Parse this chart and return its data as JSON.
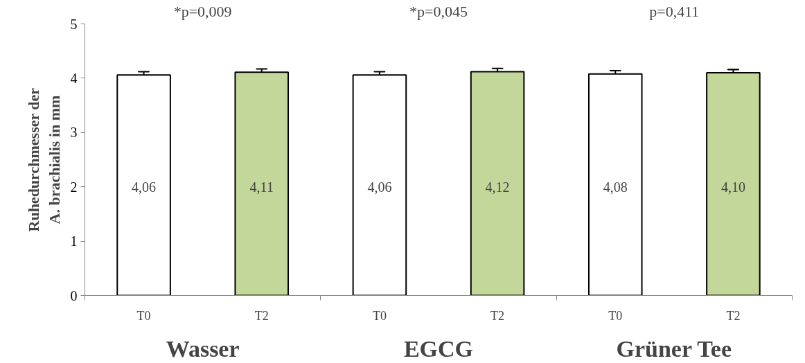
{
  "chart_data": {
    "type": "bar",
    "ylabel": "Ruhedurchmesser der\nA. brachialis in mm",
    "categories": [
      "T0",
      "T2",
      "T0",
      "T2",
      "T0",
      "T2"
    ],
    "values": [
      4.06,
      4.11,
      4.06,
      4.12,
      4.08,
      4.1
    ],
    "colors": [
      "#ffffff",
      "#c4d79b",
      "#ffffff",
      "#c4d79b",
      "#ffffff",
      "#c4d79b"
    ],
    "errors": [
      0.06,
      0.06,
      0.06,
      0.06,
      0.06,
      0.06
    ],
    "value_labels": [
      "4,06",
      "4,11",
      "4,06",
      "4,12",
      "4,08",
      "4,10"
    ],
    "ylim": [
      0,
      5
    ],
    "yticks": [
      0,
      1,
      2,
      3,
      4,
      5
    ],
    "grid": false,
    "annotations": [
      "*p=0,009",
      "*p=0,045",
      "p=0,411",
      "Wasser",
      "EGCG",
      "Grüner Tee"
    ]
  }
}
